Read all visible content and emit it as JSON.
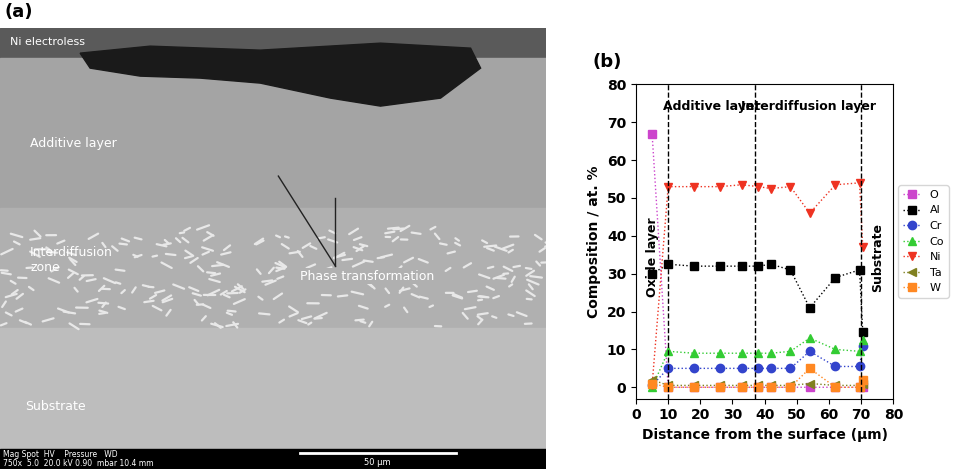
{
  "micrograph": {
    "panel_label": "(a)",
    "labels": {
      "coating": "Ni electroless",
      "additive": "Additive layer",
      "interdiffusion": "Interdiffusion\nzone",
      "phase": "Phase transformation",
      "substrate": "Substrate"
    },
    "info_header": "Mag Spot  HV    Pressure   WD",
    "info_values": "750x  5.0  20.0 kV 0.90  mbar 10.4 mm",
    "scale_bar": "50 µm"
  },
  "chart_data": {
    "type": "line",
    "panel_label": "(b)",
    "x_label": "Distance from the surface (µm)",
    "y_label": "Composition / at. %",
    "xlim": [
      0,
      80
    ],
    "xticks": [
      0,
      10,
      20,
      30,
      40,
      50,
      60,
      70,
      80
    ],
    "ylim": [
      -3,
      80
    ],
    "yticks": [
      0,
      10,
      20,
      30,
      40,
      50,
      60,
      70,
      80
    ],
    "boundaries": [
      10,
      37,
      70
    ],
    "annotations": [
      "Oxide layer",
      "Additive layer",
      "Interdiffusion layer",
      "Substrate"
    ],
    "legend": "right",
    "line_style": "dotted",
    "x": [
      5,
      10,
      18,
      26,
      33,
      38,
      42,
      48,
      54,
      62,
      69.5,
      70.5
    ],
    "series": [
      {
        "name": "O",
        "color": "#cc44cc",
        "marker": "square",
        "values": [
          67,
          0,
          0,
          0,
          0,
          0,
          0,
          0,
          0,
          0,
          0,
          0
        ]
      },
      {
        "name": "Al",
        "color": "#000000",
        "marker": "square",
        "values": [
          30,
          32.5,
          32,
          32,
          32,
          32,
          32.5,
          31,
          21,
          29,
          31,
          14.5
        ]
      },
      {
        "name": "Cr",
        "color": "#3344cc",
        "marker": "circle",
        "values": [
          0.5,
          5,
          5,
          5,
          5,
          5,
          5,
          5,
          9.5,
          5.5,
          5.5,
          11
        ]
      },
      {
        "name": "Co",
        "color": "#33cc33",
        "marker": "triangle_up",
        "values": [
          0,
          9.5,
          9,
          9,
          9,
          9,
          9,
          9.5,
          13,
          10,
          9.5,
          12.5
        ]
      },
      {
        "name": "Ni",
        "color": "#ee3322",
        "marker": "triangle_down",
        "values": [
          0.5,
          53,
          53,
          53,
          53.5,
          53,
          52.5,
          53,
          46,
          53.5,
          54,
          37
        ]
      },
      {
        "name": "Ta",
        "color": "#808020",
        "marker": "triangle_left",
        "values": [
          2,
          0.5,
          0.5,
          0.5,
          0.5,
          0.5,
          0.5,
          0.5,
          1,
          0.5,
          0.5,
          1
        ]
      },
      {
        "name": "W",
        "color": "#ff8822",
        "marker": "square",
        "values": [
          1,
          0,
          0,
          0,
          0,
          0,
          0,
          0,
          5,
          0,
          0,
          2
        ]
      }
    ]
  }
}
